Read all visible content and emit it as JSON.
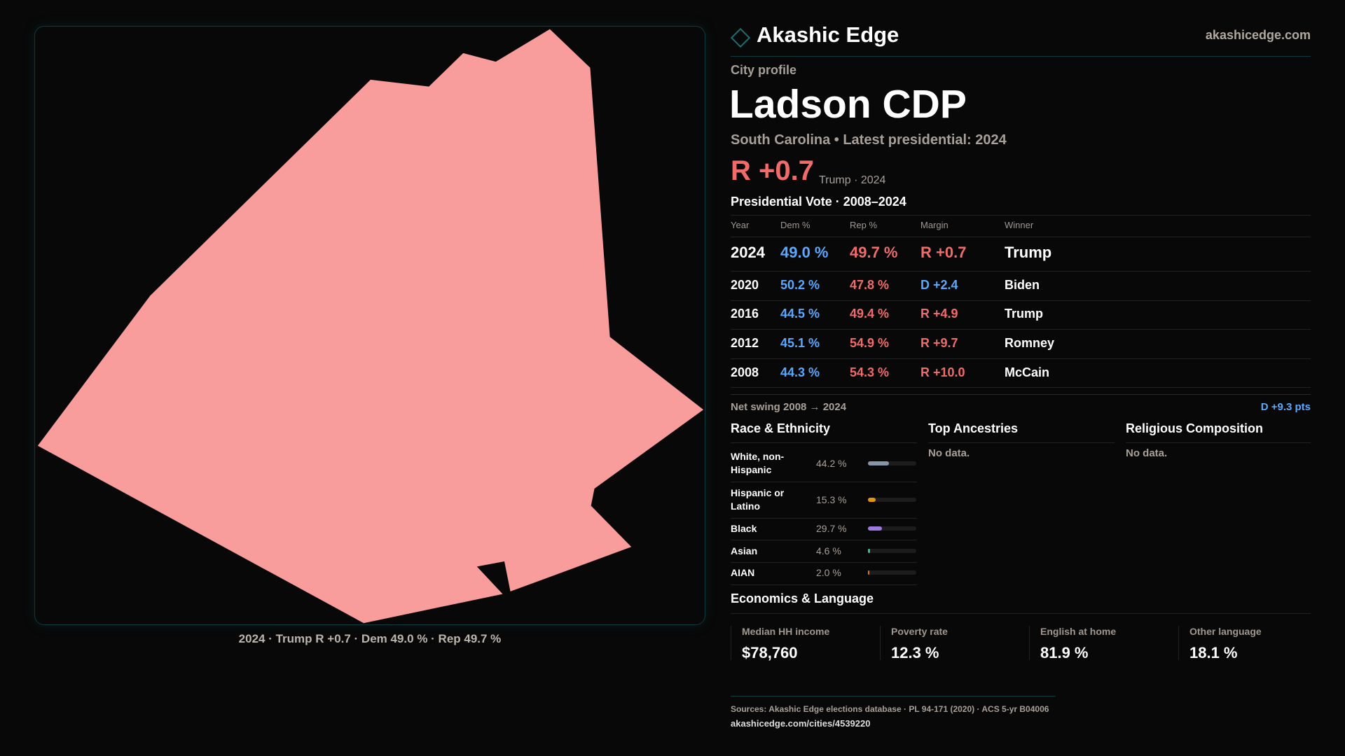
{
  "map": {
    "caption": "2024 · Trump R +0.7 · Dem 49.0 % · Rep 49.7 %",
    "fill": "#f89c9c"
  },
  "header": {
    "brand": "Akashic Edge",
    "site": "akashicedge.com"
  },
  "profile": {
    "kicker": "City profile",
    "title": "Ladson CDP",
    "subtitle": "South Carolina • Latest presidential: 2024",
    "margin": "R +0.7",
    "margin_note": "Trump · 2024"
  },
  "votes": {
    "title": "Presidential Vote · 2008–2024",
    "headers": [
      "Year",
      "Dem %",
      "Rep %",
      "Margin",
      "Winner"
    ],
    "rows": [
      {
        "year": "2024",
        "dem": "49.0 %",
        "rep": "49.7 %",
        "margin": "R +0.7",
        "party": "R",
        "winner": "Trump"
      },
      {
        "year": "2020",
        "dem": "50.2 %",
        "rep": "47.8 %",
        "margin": "D +2.4",
        "party": "D",
        "winner": "Biden"
      },
      {
        "year": "2016",
        "dem": "44.5 %",
        "rep": "49.4 %",
        "margin": "R +4.9",
        "party": "R",
        "winner": "Trump"
      },
      {
        "year": "2012",
        "dem": "45.1 %",
        "rep": "54.9 %",
        "margin": "R +9.7",
        "party": "R",
        "winner": "Romney"
      },
      {
        "year": "2008",
        "dem": "44.3 %",
        "rep": "54.3 %",
        "margin": "R +10.0",
        "party": "R",
        "winner": "McCain"
      }
    ],
    "swing_label": "Net swing 2008 → 2024",
    "swing_value": "D +9.3 pts"
  },
  "race": {
    "title": "Race & Ethnicity",
    "rows": [
      {
        "label": "White, non-Hispanic",
        "pct": "44.2 %",
        "value": 44.2,
        "color": "#8a94a8"
      },
      {
        "label": "Hispanic or Latino",
        "pct": "15.3 %",
        "value": 15.3,
        "color": "#e0960f"
      },
      {
        "label": "Black",
        "pct": "29.7 %",
        "value": 29.7,
        "color": "#9a7ae0"
      },
      {
        "label": "Asian",
        "pct": "4.6 %",
        "value": 4.6,
        "color": "#2ec48a"
      },
      {
        "label": "AIAN",
        "pct": "2.0 %",
        "value": 2.0,
        "color": "#e07a10"
      }
    ]
  },
  "ancestries": {
    "title": "Top Ancestries",
    "empty": "No data."
  },
  "religion": {
    "title": "Religious Composition",
    "empty": "No data."
  },
  "econ": {
    "title": "Economics & Language",
    "stats": [
      {
        "label": "Median HH income",
        "value": "$78,760"
      },
      {
        "label": "Poverty rate",
        "value": "12.3 %"
      },
      {
        "label": "English at home",
        "value": "81.9 %"
      },
      {
        "label": "Other language",
        "value": "18.1 %"
      }
    ]
  },
  "footer": {
    "sources": "Sources: Akashic Edge elections database · PL 94-171 (2020) · ACS 5-yr B04006",
    "url": "akashicedge.com/cities/4539220"
  }
}
